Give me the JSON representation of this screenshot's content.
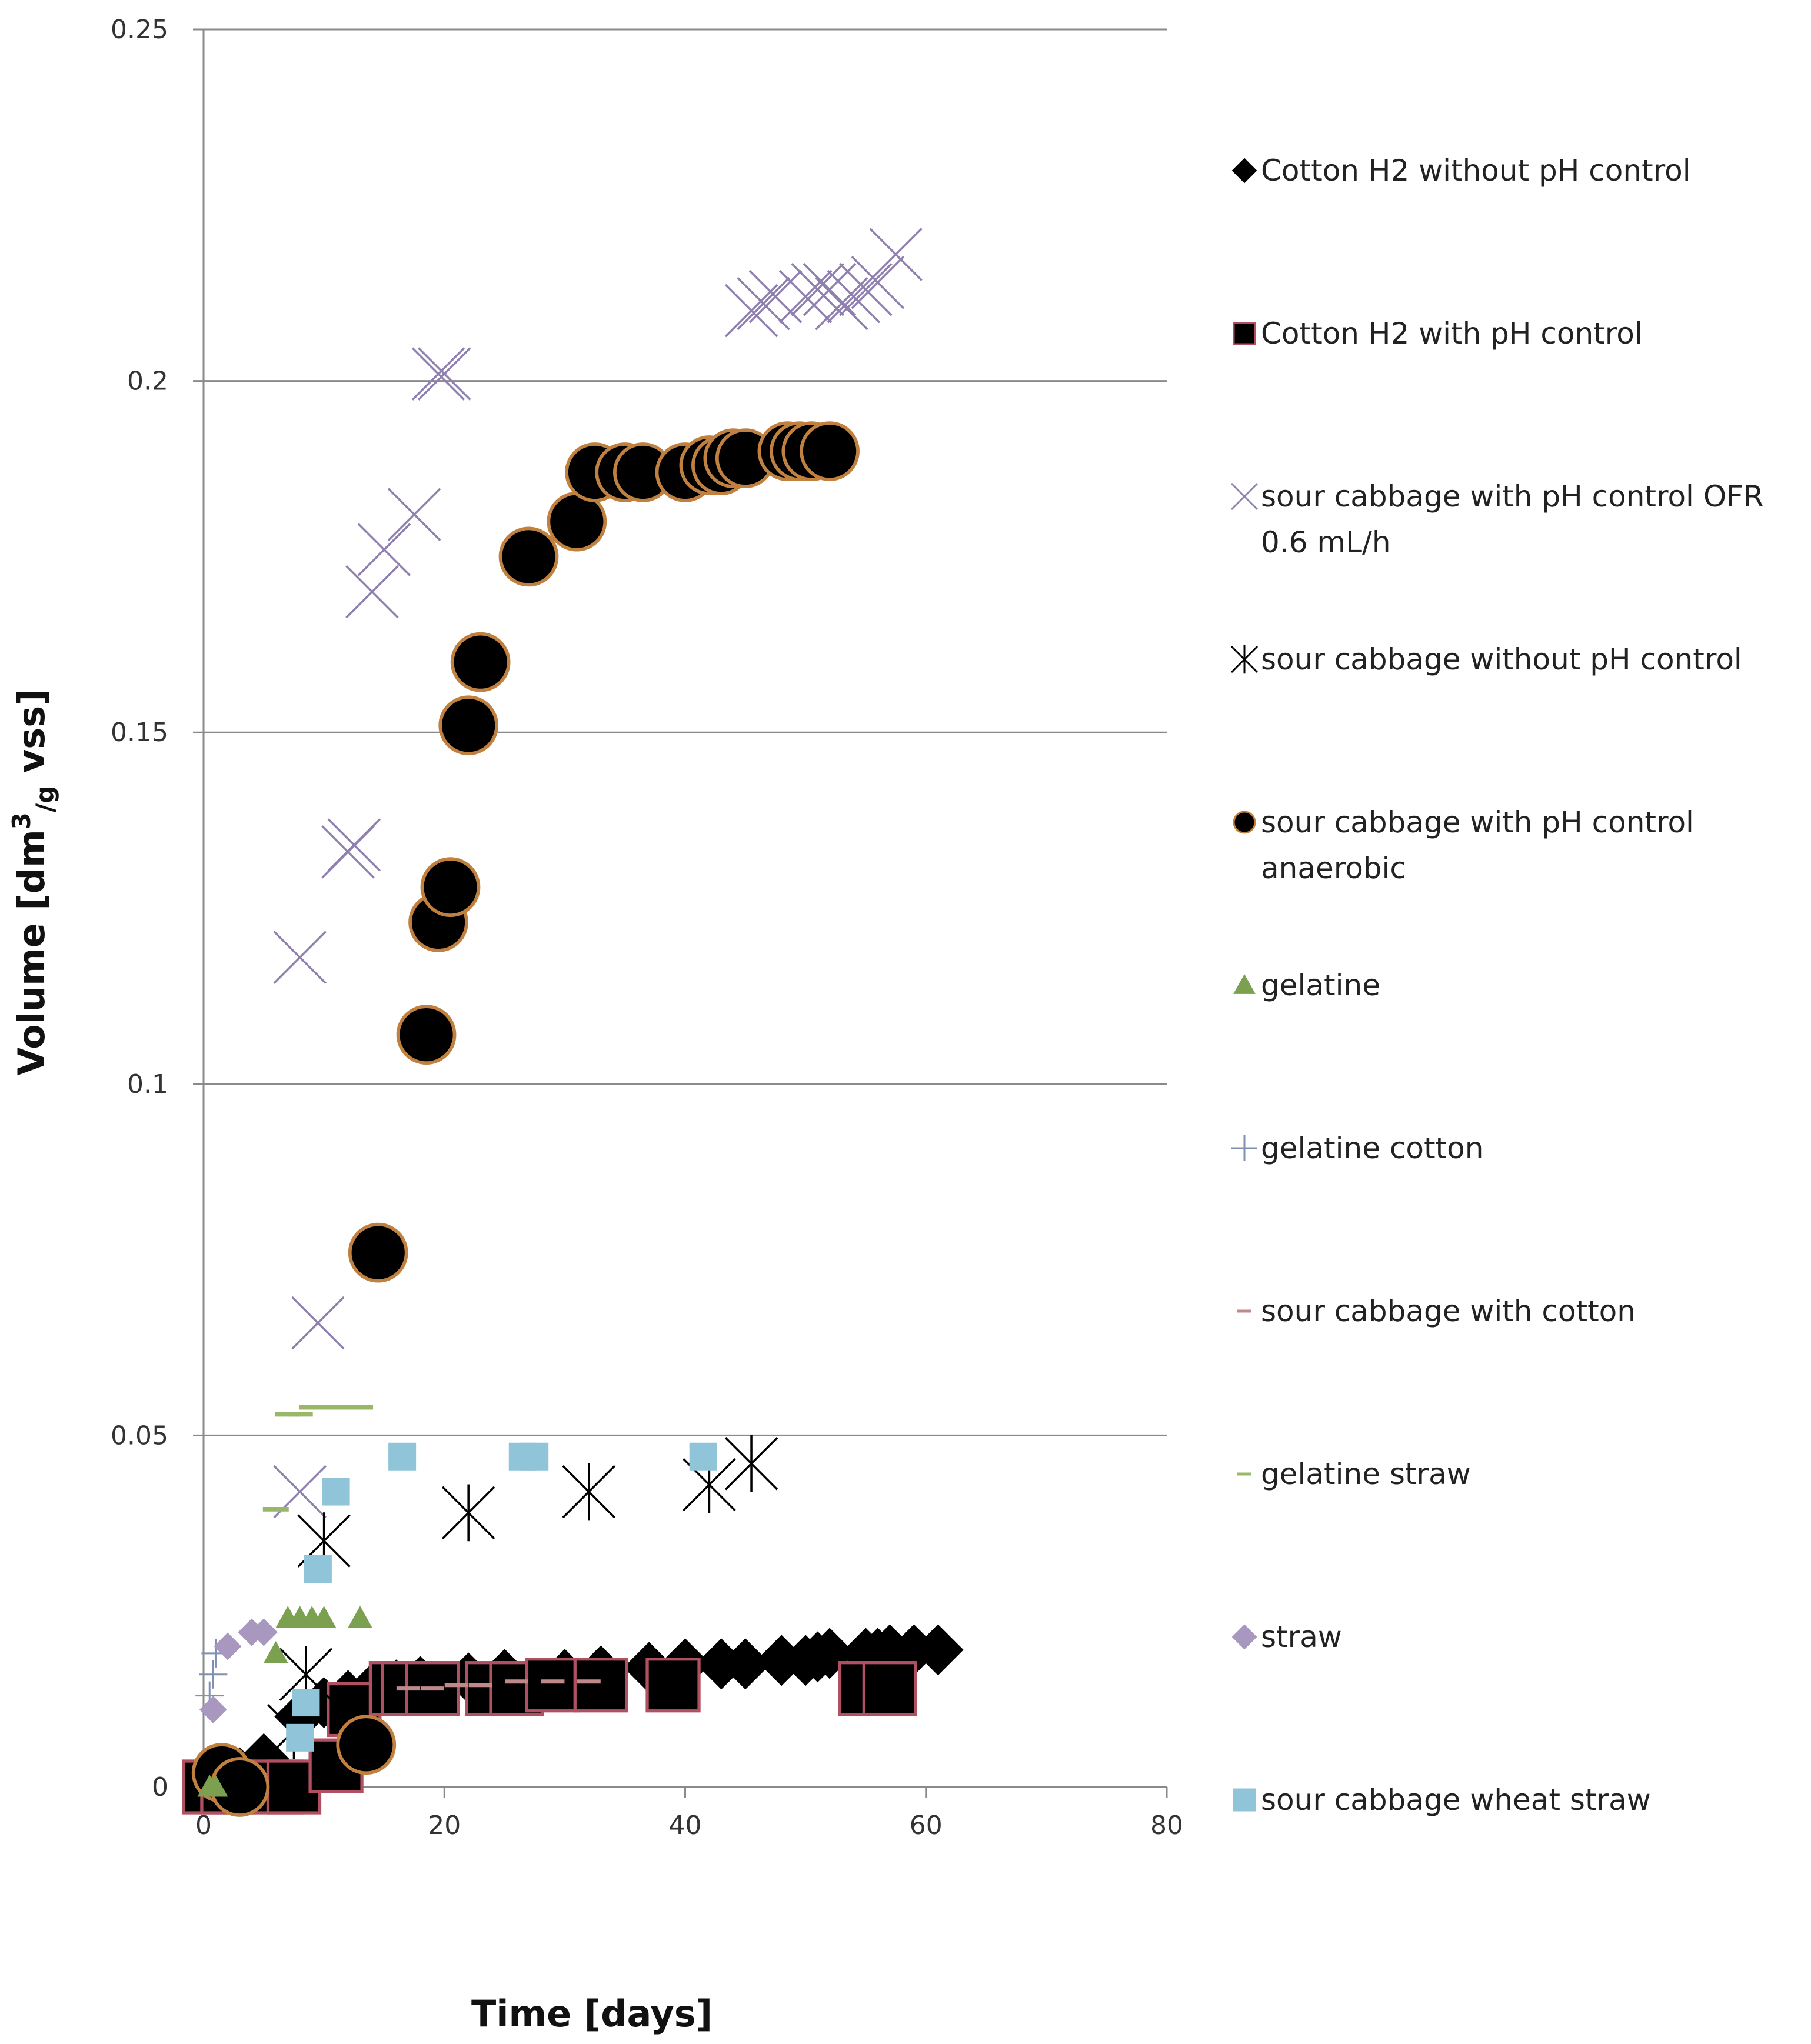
{
  "chart_data": {
    "type": "scatter",
    "title": "",
    "xlabel": "Time [days]",
    "ylabel_parts": {
      "prefix": "Volume [dm",
      "sup": "3",
      "sub": "/g",
      "suffix": " vss]"
    },
    "xlim": [
      0,
      80
    ],
    "ylim": [
      0,
      0.25
    ],
    "xticks": [
      0,
      20,
      40,
      60,
      80
    ],
    "yticks": [
      0,
      0.05,
      0.1,
      0.15,
      0.2,
      0.25
    ],
    "ytick_labels": [
      "0",
      "0.05",
      "0.1",
      "0.15",
      "0.2",
      "0.25"
    ],
    "grid": "horizontal",
    "legend_position": "right",
    "series": [
      {
        "name": "Cotton H2 without pH control",
        "marker": "diamond",
        "color": "#000000",
        "stroke": "#000000",
        "x": [
          0.5,
          3,
          5,
          8,
          10,
          12,
          14,
          16,
          18,
          22,
          25,
          30,
          33,
          37,
          40,
          43,
          45,
          48,
          50,
          51,
          52,
          55,
          56,
          57,
          59,
          61
        ],
        "y": [
          0.0005,
          0.002,
          0.004,
          0.01,
          0.012,
          0.013,
          0.014,
          0.0145,
          0.015,
          0.0155,
          0.016,
          0.016,
          0.0165,
          0.017,
          0.0175,
          0.0175,
          0.0175,
          0.018,
          0.018,
          0.0185,
          0.019,
          0.019,
          0.019,
          0.0195,
          0.0195,
          0.0195
        ]
      },
      {
        "name": "Cotton H2 with  pH control",
        "marker": "square",
        "color": "#000000",
        "stroke": "#b05060",
        "x": [
          0.5,
          2,
          6,
          7.5,
          11,
          12.5,
          16,
          17,
          19,
          24,
          26,
          29,
          33,
          39,
          55,
          57
        ],
        "y": [
          0,
          0,
          0,
          0,
          0.003,
          0.011,
          0.014,
          0.014,
          0.014,
          0.014,
          0.014,
          0.0145,
          0.0145,
          0.0145,
          0.014,
          0.014
        ]
      },
      {
        "name": "sour cabbage with pH control OFR 0.6 mL/h",
        "marker": "x",
        "color": "#8f80b0",
        "x": [
          8,
          9.5,
          8,
          12,
          12.5,
          14,
          15,
          17.5,
          20,
          19.5,
          45.5,
          46.5,
          47.5,
          50,
          51,
          52,
          53,
          54,
          55,
          56,
          57.5
        ],
        "y": [
          0.042,
          0.066,
          0.118,
          0.133,
          0.134,
          0.17,
          0.176,
          0.181,
          0.201,
          0.201,
          0.21,
          0.211,
          0.212,
          0.212,
          0.213,
          0.213,
          0.211,
          0.212,
          0.213,
          0.214,
          0.218
        ]
      },
      {
        "name": "sour cabbage without  pH control",
        "marker": "asterisk",
        "color": "#000000",
        "x": [
          7.5,
          8.5,
          10,
          22,
          32,
          42,
          45.5
        ],
        "y": [
          0.008,
          0.016,
          0.035,
          0.039,
          0.042,
          0.043,
          0.046
        ]
      },
      {
        "name": "sour cabbage with pH control anaerobic",
        "marker": "circle",
        "color": "#000000",
        "stroke": "#c08040",
        "x": [
          1.5,
          3,
          13.5,
          14.5,
          18.5,
          19.5,
          20.5,
          22,
          23,
          27,
          31,
          32.5,
          35,
          36.5,
          40,
          42,
          43,
          44,
          45,
          48.5,
          49.5,
          50.5,
          52
        ],
        "y": [
          0.002,
          0,
          0.006,
          0.076,
          0.107,
          0.123,
          0.128,
          0.151,
          0.16,
          0.175,
          0.18,
          0.187,
          0.187,
          0.187,
          0.187,
          0.188,
          0.188,
          0.189,
          0.189,
          0.19,
          0.19,
          0.19,
          0.19
        ]
      },
      {
        "name": "gelatine",
        "marker": "triangle",
        "color": "#7ba050",
        "x": [
          0.5,
          1,
          6,
          7,
          8,
          9,
          10,
          13
        ],
        "y": [
          0,
          0,
          0.019,
          0.024,
          0.024,
          0.024,
          0.024,
          0.024
        ]
      },
      {
        "name": "gelatine cotton",
        "marker": "plus",
        "color": "#8090b0",
        "x": [
          0.5,
          0.8,
          1
        ],
        "y": [
          0.013,
          0.016,
          0.019
        ]
      },
      {
        "name": "sour cabbage with cotton",
        "marker": "dash",
        "color": "#c08888",
        "x": [
          17,
          19,
          21,
          23,
          26,
          29,
          32
        ],
        "y": [
          0.014,
          0.014,
          0.0145,
          0.0145,
          0.015,
          0.015,
          0.015
        ]
      },
      {
        "name": "gelatine straw",
        "marker": "dash",
        "color": "#98b868",
        "x": [
          6,
          7,
          8,
          9,
          10,
          12,
          13
        ],
        "y": [
          0.0395,
          0.053,
          0.053,
          0.054,
          0.054,
          0.054,
          0.054
        ]
      },
      {
        "name": "straw",
        "marker": "diamond",
        "color": "#a898c0",
        "stroke": "#a898c0",
        "x": [
          0.8,
          2,
          4,
          5
        ],
        "y": [
          0.011,
          0.02,
          0.022,
          0.022
        ]
      },
      {
        "name": "sour cabbage wheat straw",
        "marker": "square",
        "color": "#90c4d8",
        "stroke": "#90c4d8",
        "x": [
          8,
          8.5,
          9.5,
          11,
          16.5,
          26.5,
          27.5,
          41.5
        ],
        "y": [
          0.007,
          0.012,
          0.031,
          0.042,
          0.047,
          0.047,
          0.047,
          0.047
        ]
      }
    ]
  },
  "legend": {
    "entries": [
      {
        "lines": [
          "Cotton H2 without pH control"
        ]
      },
      {
        "lines": [
          "Cotton H2 with  pH control"
        ]
      },
      {
        "lines": [
          "sour cabbage with pH control OFR",
          "0.6 mL/h"
        ]
      },
      {
        "lines": [
          "sour cabbage without  pH control"
        ]
      },
      {
        "lines": [
          "sour cabbage with pH control",
          "anaerobic"
        ]
      },
      {
        "lines": [
          "gelatine"
        ]
      },
      {
        "lines": [
          "gelatine cotton"
        ]
      },
      {
        "lines": [
          "sour cabbage with cotton"
        ]
      },
      {
        "lines": [
          "gelatine straw"
        ]
      },
      {
        "lines": [
          "straw"
        ]
      },
      {
        "lines": [
          "sour cabbage wheat straw"
        ]
      }
    ]
  }
}
